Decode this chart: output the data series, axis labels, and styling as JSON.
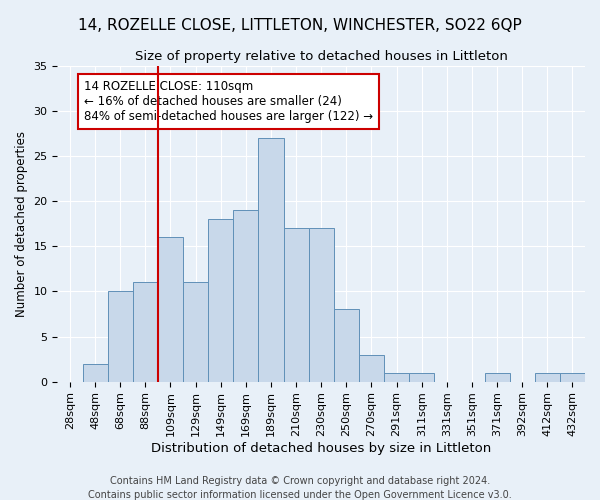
{
  "title1": "14, ROZELLE CLOSE, LITTLETON, WINCHESTER, SO22 6QP",
  "title2": "Size of property relative to detached houses in Littleton",
  "xlabel": "Distribution of detached houses by size in Littleton",
  "ylabel": "Number of detached properties",
  "footer1": "Contains HM Land Registry data © Crown copyright and database right 2024.",
  "footer2": "Contains public sector information licensed under the Open Government Licence v3.0.",
  "bin_labels": [
    "28sqm",
    "48sqm",
    "68sqm",
    "88sqm",
    "109sqm",
    "129sqm",
    "149sqm",
    "169sqm",
    "189sqm",
    "210sqm",
    "230sqm",
    "250sqm",
    "270sqm",
    "291sqm",
    "311sqm",
    "331sqm",
    "351sqm",
    "371sqm",
    "392sqm",
    "412sqm",
    "432sqm"
  ],
  "values": [
    0,
    2,
    10,
    11,
    16,
    11,
    18,
    19,
    27,
    17,
    17,
    8,
    3,
    1,
    1,
    0,
    0,
    1,
    0,
    1,
    1
  ],
  "bar_color": "#c8d8ea",
  "bar_edge_color": "#6090b8",
  "vline_color": "#cc0000",
  "annotation_text": "14 ROZELLE CLOSE: 110sqm\n← 16% of detached houses are smaller (24)\n84% of semi-detached houses are larger (122) →",
  "annotation_box_color": "#ffffff",
  "annotation_box_edge": "#cc0000",
  "ylim": [
    0,
    35
  ],
  "yticks": [
    0,
    5,
    10,
    15,
    20,
    25,
    30,
    35
  ],
  "bg_color": "#e8f0f8",
  "grid_color": "#ffffff",
  "title1_fontsize": 11,
  "title2_fontsize": 9.5,
  "xlabel_fontsize": 9.5,
  "ylabel_fontsize": 8.5,
  "tick_fontsize": 8,
  "annotation_fontsize": 8.5,
  "footer_fontsize": 7
}
